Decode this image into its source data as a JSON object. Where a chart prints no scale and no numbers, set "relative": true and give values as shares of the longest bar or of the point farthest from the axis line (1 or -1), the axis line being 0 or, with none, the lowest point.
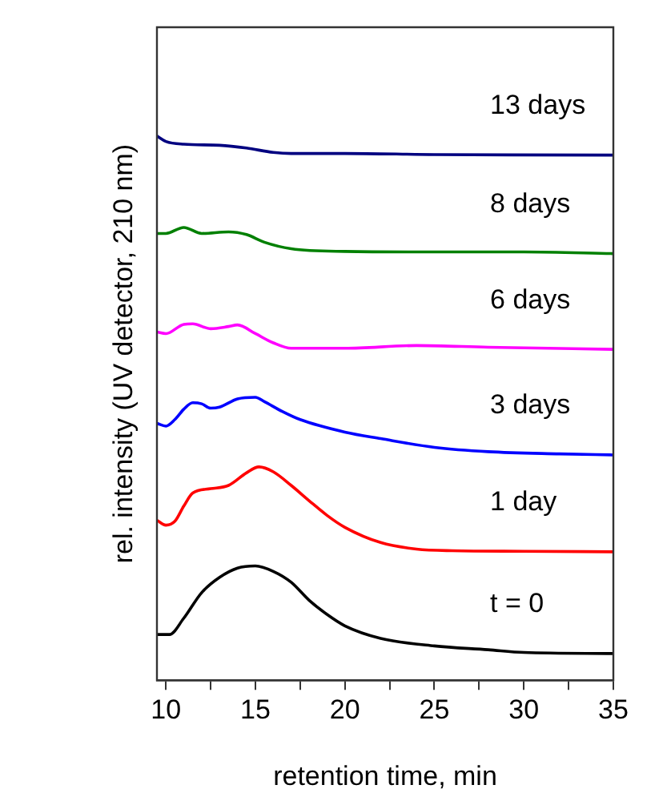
{
  "chart_data": {
    "type": "line",
    "relative": true,
    "xlabel": "retention time, min",
    "ylabel": "rel. intensity (UV detector, 210 nm)",
    "xlim": [
      9.5,
      35
    ],
    "xticks": [
      10,
      {
        "value": 12.5,
        "label": null
      },
      15,
      {
        "value": 17.5,
        "label": null
      },
      20,
      {
        "value": 22.5,
        "label": null
      },
      25,
      {
        "value": 27.5,
        "label": null
      },
      30,
      {
        "value": 32.5,
        "label": null
      },
      35
    ],
    "grid": false,
    "legend": false,
    "marker": "none",
    "line_style": "solid",
    "series": [
      {
        "name": "t = 0",
        "color": "#000000",
        "x": [
          9.5,
          10.2,
          11,
          12,
          13,
          14,
          15,
          16,
          17,
          18,
          19,
          20,
          22,
          25,
          28,
          30,
          35
        ],
        "values": [
          0.084,
          0.084,
          0.114,
          0.161,
          0.189,
          0.206,
          0.21,
          0.2,
          0.18,
          0.147,
          0.121,
          0.1,
          0.077,
          0.063,
          0.056,
          0.051,
          0.049
        ]
      },
      {
        "name": "1 day",
        "color": "#ff0000",
        "x": [
          9.5,
          10,
          10.5,
          11,
          11.5,
          12.5,
          13.5,
          14.5,
          15.2,
          16,
          17,
          18,
          19,
          20,
          22,
          24,
          26,
          30,
          35
        ],
        "values": [
          0.294,
          0.285,
          0.292,
          0.32,
          0.344,
          0.352,
          0.358,
          0.381,
          0.392,
          0.383,
          0.358,
          0.33,
          0.303,
          0.281,
          0.253,
          0.241,
          0.238,
          0.237,
          0.236
        ]
      },
      {
        "name": "3 days",
        "color": "#0000ff",
        "x": [
          9.5,
          10,
          10.5,
          11,
          11.5,
          12,
          12.5,
          13,
          14,
          15,
          15.5,
          16.5,
          17.5,
          20,
          22,
          25,
          28,
          32,
          35
        ],
        "values": [
          0.472,
          0.467,
          0.479,
          0.498,
          0.51,
          0.508,
          0.5,
          0.502,
          0.517,
          0.52,
          0.512,
          0.494,
          0.479,
          0.456,
          0.444,
          0.428,
          0.42,
          0.416,
          0.414
        ]
      },
      {
        "name": "6 days",
        "color": "#ff00ff",
        "x": [
          9.5,
          10,
          11,
          11.5,
          12.5,
          13.5,
          14,
          15,
          16,
          17,
          20,
          24,
          28,
          35
        ],
        "values": [
          0.64,
          0.637,
          0.654,
          0.655,
          0.646,
          0.65,
          0.653,
          0.637,
          0.62,
          0.61,
          0.61,
          0.615,
          0.612,
          0.608
        ]
      },
      {
        "name": "8 days",
        "color": "#008000",
        "x": [
          9.5,
          10,
          11,
          12,
          13.5,
          14.5,
          15.5,
          17,
          20,
          25,
          30,
          35
        ],
        "values": [
          0.821,
          0.821,
          0.832,
          0.821,
          0.824,
          0.819,
          0.805,
          0.793,
          0.788,
          0.787,
          0.787,
          0.784
        ]
      },
      {
        "name": "13 days",
        "color": "#000080",
        "x": [
          9.5,
          10,
          11,
          13,
          14.5,
          16,
          17,
          20,
          25,
          35
        ],
        "values": [
          1.0,
          0.99,
          0.985,
          0.983,
          0.978,
          0.97,
          0.968,
          0.968,
          0.966,
          0.965
        ]
      }
    ]
  }
}
